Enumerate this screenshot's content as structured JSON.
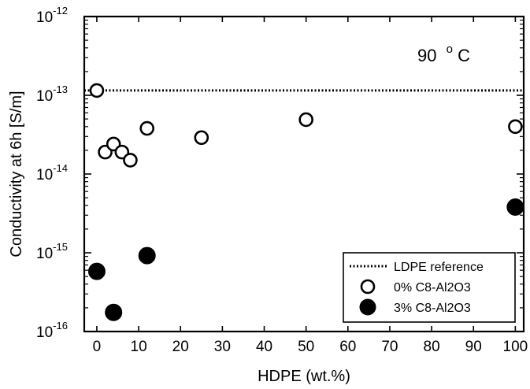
{
  "chart_data": {
    "type": "scatter",
    "xlabel": "HDPE (wt.%)",
    "ylabel": "Conductivity at 6h [S/m]",
    "xlim": [
      -3,
      102
    ],
    "ylim": [
      1e-16,
      1e-12
    ],
    "yscale": "log",
    "grid": false,
    "x_ticks": [
      0,
      10,
      20,
      30,
      40,
      50,
      60,
      70,
      80,
      90,
      100
    ],
    "y_ticks": [
      {
        "value": 1e-16,
        "base": "10",
        "exp": "-16"
      },
      {
        "value": 1e-15,
        "base": "10",
        "exp": "-15"
      },
      {
        "value": 1e-14,
        "base": "10",
        "exp": "-14"
      },
      {
        "value": 1e-13,
        "base": "10",
        "exp": "-13"
      },
      {
        "value": 1e-12,
        "base": "10",
        "exp": "-12"
      }
    ],
    "annotation": {
      "value": "90",
      "sup": "o",
      "unit": "C"
    },
    "legend_position": "bottom-right",
    "reference": {
      "name": "LDPE reference",
      "y": 1.15e-13,
      "style": "dotted"
    },
    "series": [
      {
        "name": "0% C8-Al2O3",
        "marker": "open-circle",
        "x": [
          0,
          2,
          4,
          6,
          8,
          12,
          25,
          50,
          100
        ],
        "y": [
          1.15e-13,
          1.9e-14,
          2.4e-14,
          1.9e-14,
          1.5e-14,
          3.8e-14,
          2.9e-14,
          4.9e-14,
          4e-14
        ]
      },
      {
        "name": "3% C8-Al2O3",
        "marker": "filled-circle",
        "x": [
          0,
          4,
          12,
          100
        ],
        "y": [
          5.8e-16,
          1.75e-16,
          9.2e-16,
          3.8e-15
        ]
      }
    ]
  }
}
